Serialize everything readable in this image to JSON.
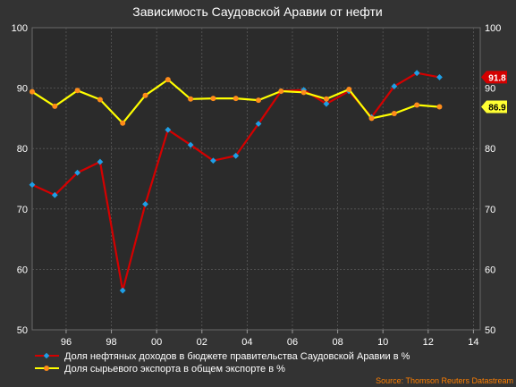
{
  "chart_data": {
    "type": "line",
    "title": "Зависимость Саудовской Аравии от нефти",
    "xlabel": "",
    "ylabel": "",
    "xlim": [
      1994.5,
      2014.3
    ],
    "ylim": [
      50,
      100
    ],
    "y_ticks": [
      50,
      60,
      70,
      80,
      90,
      100
    ],
    "x_ticks": [
      1996,
      1998,
      2000,
      2002,
      2004,
      2006,
      2008,
      2010,
      2012,
      2014
    ],
    "x_tick_labels": [
      "96",
      "98",
      "00",
      "02",
      "04",
      "06",
      "08",
      "10",
      "12",
      "14"
    ],
    "grid": true,
    "legend_position": "bottom",
    "series": [
      {
        "name": "Доля нефтяных доходов в бюджете правительства Саудовской Аравии в %",
        "line_color": "#d40000",
        "marker_color": "#1e9fe6",
        "marker": "diamond",
        "x": [
          1994.5,
          1995.5,
          1996.5,
          1997.5,
          1998.5,
          1999.5,
          2000.5,
          2001.5,
          2002.5,
          2003.5,
          2004.5,
          2005.5,
          2006.5,
          2007.5,
          2008.5,
          2009.5,
          2010.5,
          2011.5,
          2012.5
        ],
        "values": [
          74.0,
          72.3,
          76.0,
          77.8,
          56.5,
          70.8,
          83.1,
          80.6,
          78.0,
          78.8,
          84.1,
          89.5,
          89.7,
          87.4,
          89.5,
          85.2,
          90.3,
          92.5,
          91.8
        ],
        "last_value_label": "91.8"
      },
      {
        "name": "Доля сырьевого экспорта в общем экспорте в %",
        "line_color": "#ffff00",
        "marker_color": "#ff8c1a",
        "marker": "circle",
        "x": [
          1994.5,
          1995.5,
          1996.5,
          1997.5,
          1998.5,
          1999.5,
          2000.5,
          2001.5,
          2002.5,
          2003.5,
          2004.5,
          2005.5,
          2006.5,
          2007.5,
          2008.5,
          2009.5,
          2010.5,
          2011.5,
          2012.5
        ],
        "values": [
          89.4,
          87.0,
          89.6,
          88.1,
          84.2,
          88.8,
          91.4,
          88.2,
          88.3,
          88.3,
          88.0,
          89.5,
          89.3,
          88.2,
          89.8,
          85.0,
          85.8,
          87.2,
          86.9
        ],
        "last_value_label": "86.9"
      }
    ],
    "source": "Source: Thomson Reuters Datastream"
  }
}
